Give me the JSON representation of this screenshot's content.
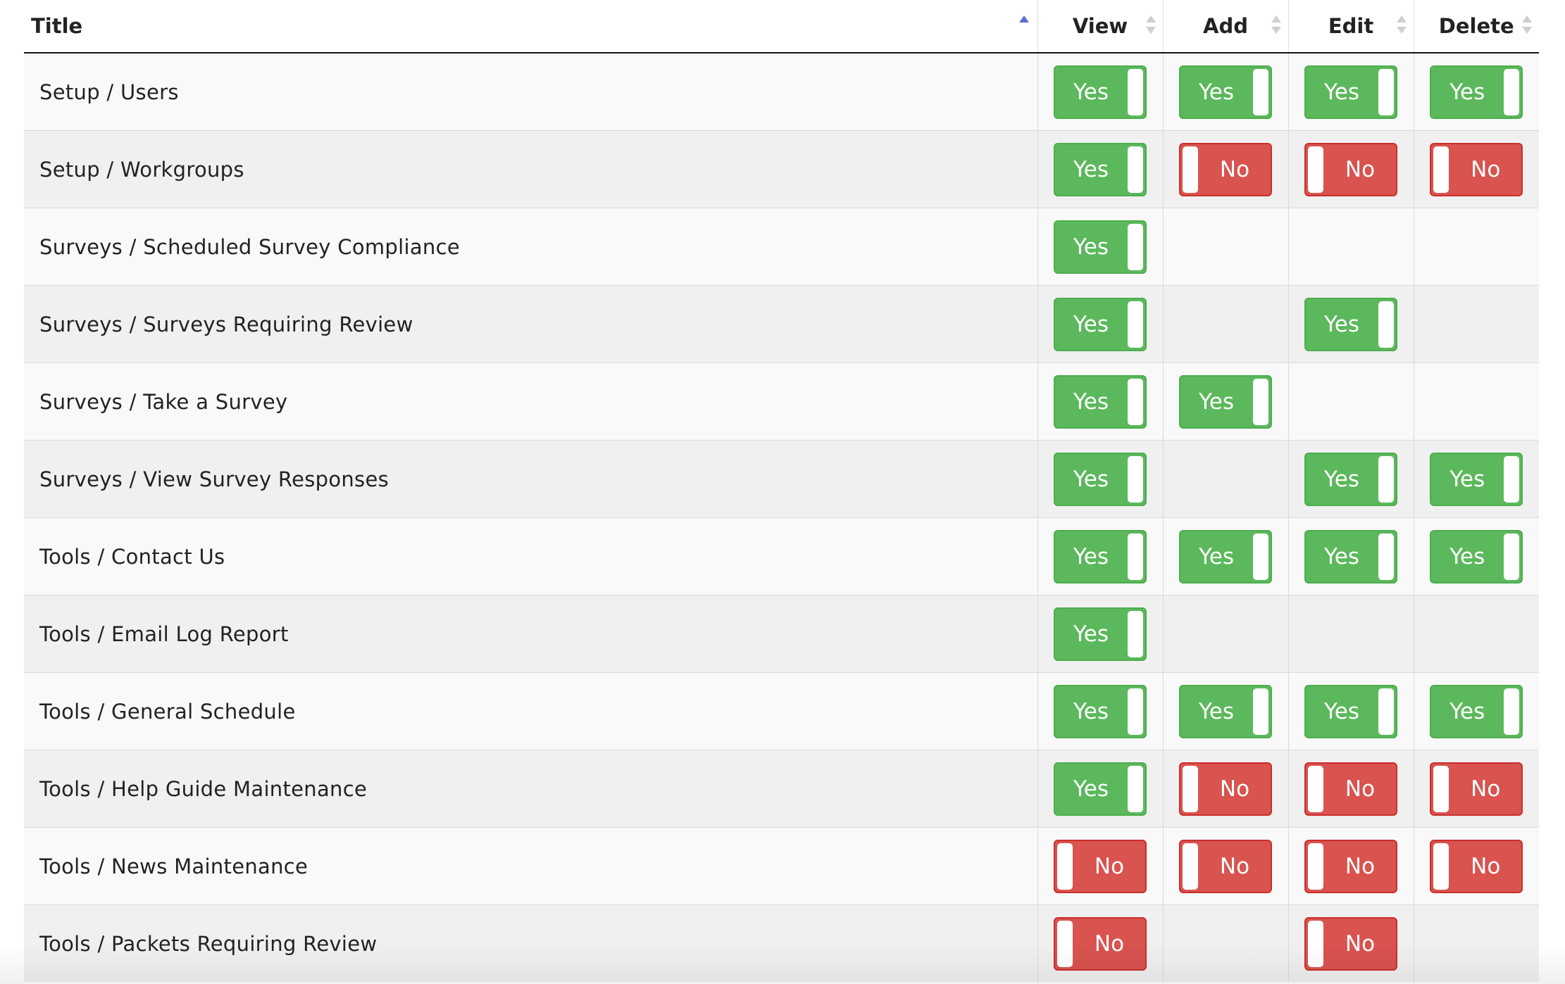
{
  "table": {
    "headers": {
      "title": "Title",
      "view": "View",
      "add": "Add",
      "edit": "Edit",
      "delete": "Delete"
    },
    "sort": {
      "column": "title",
      "direction": "ascending"
    },
    "colors": {
      "yes": "#5cb85c",
      "no": "#d9534f"
    },
    "rows": [
      {
        "title": "Setup / Users",
        "view": "Yes",
        "add": "Yes",
        "edit": "Yes",
        "delete": "Yes"
      },
      {
        "title": "Setup / Workgroups",
        "view": "Yes",
        "add": "No",
        "edit": "No",
        "delete": "No"
      },
      {
        "title": "Surveys / Scheduled Survey Compliance",
        "view": "Yes",
        "add": "",
        "edit": "",
        "delete": ""
      },
      {
        "title": "Surveys / Surveys Requiring Review",
        "view": "Yes",
        "add": "",
        "edit": "Yes",
        "delete": ""
      },
      {
        "title": "Surveys / Take a Survey",
        "view": "Yes",
        "add": "Yes",
        "edit": "",
        "delete": ""
      },
      {
        "title": "Surveys / View Survey Responses",
        "view": "Yes",
        "add": "",
        "edit": "Yes",
        "delete": "Yes"
      },
      {
        "title": "Tools / Contact Us",
        "view": "Yes",
        "add": "Yes",
        "edit": "Yes",
        "delete": "Yes"
      },
      {
        "title": "Tools / Email Log Report",
        "view": "Yes",
        "add": "",
        "edit": "",
        "delete": ""
      },
      {
        "title": "Tools / General Schedule",
        "view": "Yes",
        "add": "Yes",
        "edit": "Yes",
        "delete": "Yes"
      },
      {
        "title": "Tools / Help Guide Maintenance",
        "view": "Yes",
        "add": "No",
        "edit": "No",
        "delete": "No"
      },
      {
        "title": "Tools / News Maintenance",
        "view": "No",
        "add": "No",
        "edit": "No",
        "delete": "No"
      },
      {
        "title": "Tools / Packets Requiring Review",
        "view": "No",
        "add": "",
        "edit": "No",
        "delete": ""
      }
    ]
  }
}
